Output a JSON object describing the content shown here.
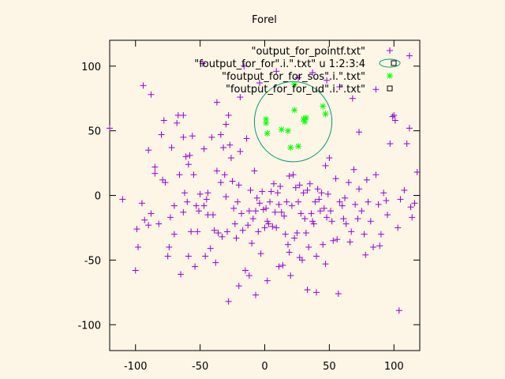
{
  "chart_data": {
    "type": "scatter",
    "title": "Forel",
    "xlim": [
      -120,
      120
    ],
    "ylim": [
      -120,
      120
    ],
    "x_ticks": [
      -100,
      -50,
      0,
      50,
      100
    ],
    "y_ticks": [
      -100,
      -50,
      0,
      50,
      100
    ],
    "grid": false,
    "legend_position": "top-right",
    "series": [
      {
        "name": "\"output_for_pointf.txt\"",
        "marker": "plus",
        "color": "#9400d3",
        "points": [
          [
            -120,
            52
          ],
          [
            -110,
            -3
          ],
          [
            -100,
            -58
          ],
          [
            -95,
            -6
          ],
          [
            -93,
            -19
          ],
          [
            -90,
            -23
          ],
          [
            -88,
            78
          ],
          [
            -88,
            -14
          ],
          [
            -85,
            22
          ],
          [
            -85,
            17
          ],
          [
            -82,
            -22
          ],
          [
            -79,
            12
          ],
          [
            -78,
            58
          ],
          [
            -77,
            10
          ],
          [
            -75,
            -47
          ],
          [
            -74,
            -40
          ],
          [
            -73,
            -17
          ],
          [
            -72,
            37
          ],
          [
            -70,
            -8
          ],
          [
            -68,
            56
          ],
          [
            -67,
            62
          ],
          [
            -66,
            16
          ],
          [
            -65,
            -61
          ],
          [
            -63,
            62
          ],
          [
            -63,
            -13
          ],
          [
            -62,
            2
          ],
          [
            -61,
            30
          ],
          [
            -60,
            -5
          ],
          [
            -59,
            24
          ],
          [
            -59,
            -47
          ],
          [
            -58,
            31
          ],
          [
            -57,
            -28
          ],
          [
            -56,
            46
          ],
          [
            -55,
            16
          ],
          [
            -53,
            -8
          ],
          [
            -52,
            -28
          ],
          [
            -51,
            -12
          ],
          [
            -50,
            1
          ],
          [
            -48,
            102
          ],
          [
            -47,
            -8
          ],
          [
            -46,
            -47
          ],
          [
            -45,
            -3
          ],
          [
            -44,
            2
          ],
          [
            -42,
            -41
          ],
          [
            -40,
            -15
          ],
          [
            -39,
            -27
          ],
          [
            -37,
            72
          ],
          [
            -37,
            19
          ],
          [
            -36,
            -29
          ],
          [
            -34,
            47
          ],
          [
            -34,
            10
          ],
          [
            -33,
            -32
          ],
          [
            -32,
            37
          ],
          [
            -31,
            16
          ],
          [
            -30,
            -1
          ],
          [
            -29,
            -28
          ],
          [
            -28,
            62
          ],
          [
            -27,
            39
          ],
          [
            -26,
            29
          ],
          [
            -25,
            11
          ],
          [
            -24,
            -10
          ],
          [
            -23,
            -22
          ],
          [
            -22,
            -33
          ],
          [
            -21,
            -5
          ],
          [
            -20,
            8
          ],
          [
            -19,
            34
          ],
          [
            -18,
            -14
          ],
          [
            -17,
            -27
          ],
          [
            -16,
            100
          ],
          [
            -15,
            -58
          ],
          [
            -14,
            44
          ],
          [
            -13,
            -23
          ],
          [
            -12,
            -12
          ],
          [
            -11,
            4
          ],
          [
            -10,
            -37
          ],
          [
            -9,
            -18
          ],
          [
            -8,
            19
          ],
          [
            -7,
            -12
          ],
          [
            -6,
            -2
          ],
          [
            -5,
            -28
          ],
          [
            -4,
            -6
          ],
          [
            -3,
            -45
          ],
          [
            -2,
            3
          ],
          [
            -1,
            -11
          ],
          [
            0,
            -25
          ],
          [
            1,
            -10
          ],
          [
            2,
            -20
          ],
          [
            3,
            -22
          ],
          [
            4,
            -5
          ],
          [
            5,
            3
          ],
          [
            6,
            -24
          ],
          [
            7,
            9
          ],
          [
            8,
            -13
          ],
          [
            9,
            -25
          ],
          [
            10,
            2
          ],
          [
            11,
            -7
          ],
          [
            12,
            7
          ],
          [
            13,
            -13
          ],
          [
            14,
            -54
          ],
          [
            15,
            -16
          ],
          [
            16,
            -30
          ],
          [
            17,
            -5
          ],
          [
            18,
            -38
          ],
          [
            19,
            15
          ],
          [
            20,
            -62
          ],
          [
            21,
            -8
          ],
          [
            22,
            16
          ],
          [
            23,
            -33
          ],
          [
            24,
            6
          ],
          [
            25,
            -29
          ],
          [
            26,
            -5
          ],
          [
            27,
            8
          ],
          [
            28,
            -14
          ],
          [
            29,
            -50
          ],
          [
            30,
            2
          ],
          [
            31,
            -18
          ],
          [
            32,
            -29
          ],
          [
            33,
            4
          ],
          [
            34,
            -40
          ],
          [
            35,
            9
          ],
          [
            36,
            -14
          ],
          [
            37,
            -20
          ],
          [
            38,
            -22
          ],
          [
            39,
            -5
          ],
          [
            40,
            -47
          ],
          [
            41,
            5
          ],
          [
            42,
            -3
          ],
          [
            43,
            -12
          ],
          [
            44,
            2
          ],
          [
            45,
            -38
          ],
          [
            46,
            -10
          ],
          [
            47,
            23
          ],
          [
            48,
            -17
          ],
          [
            49,
            1
          ],
          [
            50,
            29
          ],
          [
            51,
            -12
          ],
          [
            52,
            -20
          ],
          [
            53,
            -35
          ],
          [
            55,
            13
          ],
          [
            56,
            -34
          ],
          [
            58,
            -5
          ],
          [
            60,
            -8
          ],
          [
            61,
            -18
          ],
          [
            62,
            -2
          ],
          [
            63,
            -22
          ],
          [
            65,
            10
          ],
          [
            67,
            -28
          ],
          [
            69,
            20
          ],
          [
            70,
            -7
          ],
          [
            72,
            -18
          ],
          [
            73,
            5
          ],
          [
            75,
            -12
          ],
          [
            77,
            -30
          ],
          [
            79,
            12
          ],
          [
            80,
            -5
          ],
          [
            82,
            -20
          ],
          [
            84,
            -40
          ],
          [
            86,
            16
          ],
          [
            88,
            -7
          ],
          [
            90,
            -30
          ],
          [
            92,
            2
          ],
          [
            94,
            -4
          ],
          [
            95,
            -15
          ],
          [
            97,
            40
          ],
          [
            99,
            61
          ],
          [
            101,
            58
          ],
          [
            103,
            -25
          ],
          [
            105,
            -3
          ],
          [
            108,
            4
          ],
          [
            110,
            40
          ],
          [
            112,
            108
          ],
          [
            114,
            -17
          ],
          [
            116,
            -6
          ],
          [
            118,
            18
          ],
          [
            -99,
            -26
          ],
          [
            -98,
            -40
          ],
          [
            -94,
            85
          ],
          [
            -70,
            -30
          ],
          [
            -54,
            -55
          ],
          [
            -44,
            -15
          ],
          [
            -38,
            -52
          ],
          [
            -28,
            -82
          ],
          [
            -20,
            -70
          ],
          [
            -12,
            -62
          ],
          [
            -7,
            -77
          ],
          [
            2,
            -66
          ],
          [
            11,
            -55
          ],
          [
            19,
            -44
          ],
          [
            27,
            -48
          ],
          [
            33,
            -73
          ],
          [
            40,
            -75
          ],
          [
            47,
            -53
          ],
          [
            57,
            -76
          ],
          [
            66,
            -36
          ],
          [
            78,
            -46
          ],
          [
            89,
            -39
          ],
          [
            104,
            -89
          ],
          [
            113,
            -9
          ],
          [
            112,
            52
          ],
          [
            100,
            62
          ],
          [
            86,
            82
          ],
          [
            73,
            49
          ],
          [
            68,
            75
          ],
          [
            58,
            84
          ],
          [
            48,
            89
          ],
          [
            37,
            95
          ],
          [
            26,
            91
          ],
          [
            9,
            96
          ],
          [
            -4,
            87
          ],
          [
            -19,
            76
          ],
          [
            -30,
            55
          ],
          [
            -41,
            45
          ],
          [
            -47,
            36
          ],
          [
            -63,
            45
          ],
          [
            -80,
            47
          ],
          [
            -90,
            35
          ]
        ]
      },
      {
        "name": "\"foutput_for_for\".i.\".txt\" u 1:2:3:4",
        "marker": "ellipse",
        "color": "#009e73",
        "ellipses": [
          {
            "cx": 22,
            "cy": 57,
            "rx": 30,
            "ry": 31
          }
        ]
      },
      {
        "name": "\"foutput_for_for_sos\".i.\".txt\"",
        "marker": "star",
        "color": "#00ff00",
        "points": [
          [
            1,
            56
          ],
          [
            1,
            59
          ],
          [
            2,
            48
          ],
          [
            13,
            51
          ],
          [
            18,
            50
          ],
          [
            20,
            37
          ],
          [
            23,
            66
          ],
          [
            26,
            38
          ],
          [
            30,
            59
          ],
          [
            31,
            57
          ],
          [
            32,
            60
          ],
          [
            45,
            69
          ],
          [
            47,
            63
          ],
          [
            23,
            86
          ]
        ]
      },
      {
        "name": "\"foutput_for_for_ud\".i.\".txt\"",
        "marker": "square",
        "color": "#000000",
        "points": []
      }
    ]
  }
}
